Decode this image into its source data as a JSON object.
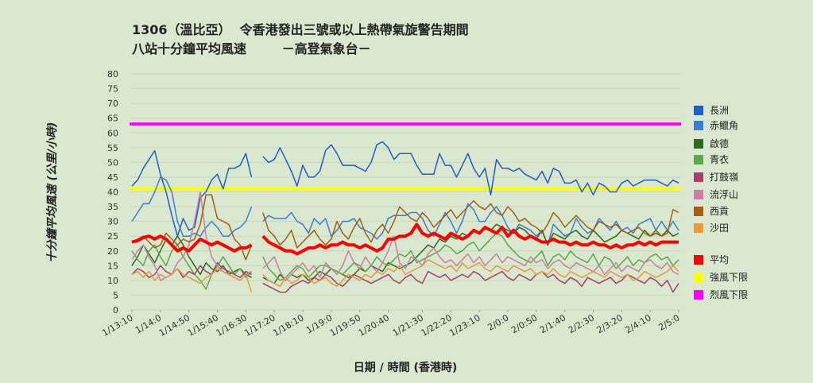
{
  "titles": {
    "line1": "1306（溫比亞）  令香港發出三號或以上熱帶氣旋警告期間",
    "line2": "八站十分鐘平均風速        －高登氣象台－"
  },
  "chart_data": {
    "type": "line",
    "ylabel": "十分鐘平均風速 (公里/小時)",
    "xlabel": "日期 / 時間 (香港時)",
    "ylim": [
      0,
      80
    ],
    "yticks": [
      0,
      5,
      10,
      15,
      20,
      25,
      30,
      35,
      40,
      45,
      50,
      55,
      60,
      65,
      70,
      75,
      80
    ],
    "xticklabels": [
      "1/13:10",
      "1/14:0",
      "1/14:50",
      "1/15:40",
      "1/16:30",
      "1/17:20",
      "1/18:10",
      "1/19:0",
      "1/19:50",
      "1/20:40",
      "1/21:30",
      "1/22:20",
      "1/23:10",
      "2/0:0",
      "2/0:50",
      "2/1:40",
      "2/2:30",
      "2/3:20",
      "2/4:10",
      "2/5:0"
    ],
    "grid": true,
    "legend_position": "right",
    "thresholds": [
      {
        "name": "強風下限",
        "value": 41,
        "color": "#ffff00"
      },
      {
        "name": "烈風下限",
        "value": 63,
        "color": "#ff00ff"
      }
    ],
    "series": [
      {
        "name": "長洲",
        "color": "#1f5fc8",
        "values": [
          42,
          44,
          48,
          51,
          54,
          46,
          40,
          32,
          25,
          31,
          27,
          28,
          38,
          40,
          44,
          46,
          41,
          48,
          48,
          49,
          53,
          45,
          null,
          52,
          50,
          51,
          55,
          51,
          47,
          42,
          49,
          45,
          45,
          47,
          54,
          56,
          53,
          49,
          49,
          49,
          48,
          47,
          50,
          56,
          57,
          55,
          51,
          53,
          53,
          53,
          49,
          46,
          46,
          46,
          53,
          49,
          49,
          45,
          49,
          53,
          48,
          45,
          48,
          39,
          51,
          48,
          48,
          47,
          48,
          46,
          45,
          44,
          47,
          43,
          48,
          47,
          43,
          43,
          44,
          40,
          43,
          39,
          43,
          42,
          40,
          40,
          43,
          44,
          42,
          43,
          44,
          44,
          44,
          43,
          42,
          44,
          43
        ]
      },
      {
        "name": "赤鱲角",
        "color": "#3a7fd6",
        "values": [
          30,
          33,
          36,
          36,
          40,
          45,
          44,
          40,
          30,
          25,
          25,
          26,
          25,
          28,
          30,
          28,
          25,
          25,
          27,
          28,
          30,
          35,
          null,
          30,
          32,
          31,
          31,
          31,
          33,
          30,
          29,
          26,
          31,
          29,
          31,
          25,
          27,
          30,
          30,
          31,
          28,
          27,
          26,
          24,
          26,
          31,
          32,
          32,
          32,
          33,
          33,
          31,
          27,
          25,
          29,
          33,
          30,
          26,
          30,
          36,
          34,
          30,
          30,
          33,
          35,
          32,
          28,
          26,
          29,
          28,
          27,
          25,
          27,
          22,
          29,
          27,
          25,
          26,
          31,
          28,
          26,
          27,
          31,
          29,
          27,
          30,
          27,
          28,
          26,
          29,
          30,
          31,
          27,
          30,
          27,
          30,
          27
        ]
      },
      {
        "name": "啟德",
        "color": "#2e6b1f",
        "values": [
          15,
          18,
          22,
          19,
          16,
          20,
          24,
          22,
          25,
          22,
          18,
          15,
          12,
          16,
          14,
          13,
          15,
          12,
          13,
          14,
          12,
          11,
          null,
          11,
          10,
          9,
          12,
          10,
          12,
          11,
          12,
          10,
          11,
          13,
          12,
          14,
          13,
          12,
          11,
          12,
          14,
          13,
          15,
          14,
          13,
          16,
          15,
          14,
          15,
          16,
          18,
          20,
          22,
          21,
          24,
          23,
          25,
          24,
          26,
          25,
          27,
          26,
          28,
          27,
          29,
          28,
          27,
          26,
          28,
          27,
          25,
          24,
          27,
          22,
          26,
          25,
          24,
          26,
          27,
          25,
          24,
          27,
          25,
          23,
          24,
          25,
          27,
          26,
          25,
          24,
          27,
          25,
          26,
          25,
          27,
          25,
          26
        ]
      },
      {
        "name": "青衣",
        "color": "#5ea84a",
        "values": [
          20,
          17,
          15,
          20,
          22,
          18,
          15,
          20,
          22,
          18,
          15,
          12,
          10,
          7,
          12,
          15,
          18,
          15,
          12,
          14,
          11,
          13,
          null,
          18,
          14,
          12,
          10,
          11,
          13,
          15,
          14,
          11,
          13,
          15,
          15,
          14,
          13,
          12,
          14,
          16,
          15,
          13,
          15,
          18,
          16,
          15,
          17,
          19,
          18,
          20,
          16,
          17,
          18,
          19,
          20,
          22,
          21,
          19,
          20,
          22,
          23,
          20,
          22,
          24,
          26,
          25,
          22,
          20,
          18,
          17,
          16,
          18,
          20,
          15,
          18,
          19,
          17,
          20,
          18,
          17,
          16,
          19,
          15,
          18,
          17,
          14,
          16,
          18,
          15,
          17,
          16,
          18,
          19,
          17,
          18,
          15,
          17
        ]
      },
      {
        "name": "打鼓嶺",
        "color": "#a8406e",
        "values": [
          12,
          14,
          13,
          11,
          12,
          15,
          13,
          12,
          14,
          11,
          13,
          12,
          15,
          13,
          12,
          16,
          14,
          13,
          12,
          11,
          13,
          12,
          null,
          9,
          8,
          7,
          6,
          6,
          8,
          9,
          10,
          9,
          11,
          10,
          12,
          11,
          9,
          8,
          10,
          12,
          11,
          10,
          9,
          10,
          11,
          12,
          10,
          9,
          11,
          12,
          10,
          9,
          13,
          12,
          11,
          12,
          10,
          11,
          12,
          11,
          13,
          12,
          10,
          11,
          12,
          13,
          11,
          10,
          12,
          11,
          10,
          12,
          13,
          11,
          12,
          10,
          9,
          11,
          10,
          8,
          11,
          10,
          9,
          10,
          11,
          9,
          10,
          12,
          11,
          10,
          9,
          11,
          10,
          8,
          10,
          6,
          9
        ]
      },
      {
        "name": "流浮山",
        "color": "#c97fa8",
        "values": [
          17,
          20,
          22,
          18,
          15,
          10,
          11,
          12,
          16,
          18,
          22,
          30,
          40,
          25,
          18,
          15,
          13,
          12,
          11,
          10,
          12,
          13,
          null,
          14,
          16,
          18,
          13,
          10,
          12,
          14,
          16,
          13,
          15,
          11,
          16,
          14,
          12,
          15,
          20,
          16,
          14,
          18,
          15,
          13,
          16,
          20,
          25,
          16,
          14,
          18,
          17,
          15,
          19,
          21,
          18,
          16,
          17,
          15,
          17,
          19,
          16,
          18,
          15,
          17,
          19,
          16,
          18,
          17,
          16,
          15,
          18,
          16,
          17,
          14,
          16,
          17,
          15,
          14,
          16,
          15,
          14,
          13,
          15,
          12,
          14,
          16,
          13,
          15,
          14,
          13,
          16,
          17,
          15,
          14,
          16,
          13,
          12
        ]
      },
      {
        "name": "西貢",
        "color": "#a65e14",
        "values": [
          23,
          24,
          25,
          23,
          21,
          22,
          26,
          24,
          22,
          24,
          23,
          24,
          29,
          39,
          39,
          31,
          30,
          29,
          24,
          22,
          17,
          22,
          null,
          33,
          27,
          25,
          22,
          24,
          27,
          21,
          23,
          25,
          27,
          24,
          22,
          24,
          30,
          26,
          24,
          28,
          31,
          26,
          23,
          27,
          29,
          26,
          30,
          35,
          33,
          31,
          30,
          33,
          31,
          28,
          30,
          32,
          34,
          31,
          33,
          35,
          37,
          35,
          34,
          36,
          33,
          32,
          35,
          33,
          30,
          31,
          29,
          28,
          26,
          29,
          33,
          31,
          28,
          30,
          32,
          30,
          28,
          27,
          30,
          29,
          28,
          29,
          27,
          26,
          27,
          28,
          26,
          25,
          27,
          25,
          26,
          34,
          33
        ]
      },
      {
        "name": "沙田",
        "color": "#e89a3c",
        "values": [
          12,
          13,
          11,
          13,
          10,
          12,
          11,
          12,
          14,
          12,
          11,
          10,
          9,
          11,
          12,
          14,
          13,
          12,
          11,
          10,
          12,
          6,
          null,
          12,
          10,
          9,
          8,
          11,
          9,
          10,
          12,
          11,
          9,
          10,
          11,
          9,
          8,
          10,
          12,
          11,
          10,
          12,
          11,
          13,
          12,
          14,
          13,
          15,
          12,
          13,
          14,
          15,
          17,
          16,
          15,
          14,
          15,
          13,
          16,
          14,
          15,
          16,
          14,
          13,
          15,
          14,
          13,
          15,
          14,
          13,
          14,
          12,
          13,
          12,
          14,
          12,
          11,
          13,
          12,
          11,
          12,
          13,
          12,
          11,
          13,
          12,
          11,
          12,
          10,
          11,
          13,
          12,
          11,
          12,
          13,
          15,
          13
        ]
      },
      {
        "name": "平均",
        "color": "#ff0000",
        "width": 4,
        "values": [
          23,
          23.5,
          24.5,
          25,
          24,
          25,
          24,
          22,
          20,
          21,
          20,
          22,
          24,
          23,
          22,
          23,
          22,
          21,
          20,
          21,
          21,
          22,
          null,
          25,
          23,
          22,
          21,
          20,
          20,
          19,
          20,
          21,
          21,
          22,
          21,
          22,
          22,
          23,
          22,
          22,
          21,
          22,
          21,
          20,
          21,
          24,
          24,
          25,
          25,
          26,
          29,
          26,
          25,
          26,
          25,
          24,
          26,
          25,
          24,
          25,
          27,
          26,
          28,
          27,
          26,
          28,
          25,
          27,
          25,
          24,
          25,
          24,
          23,
          23,
          24,
          23,
          23,
          22,
          23,
          22,
          22,
          23,
          22,
          22,
          21,
          22,
          21,
          22,
          22,
          23,
          22,
          23,
          22,
          23,
          23,
          23,
          23
        ]
      }
    ]
  }
}
